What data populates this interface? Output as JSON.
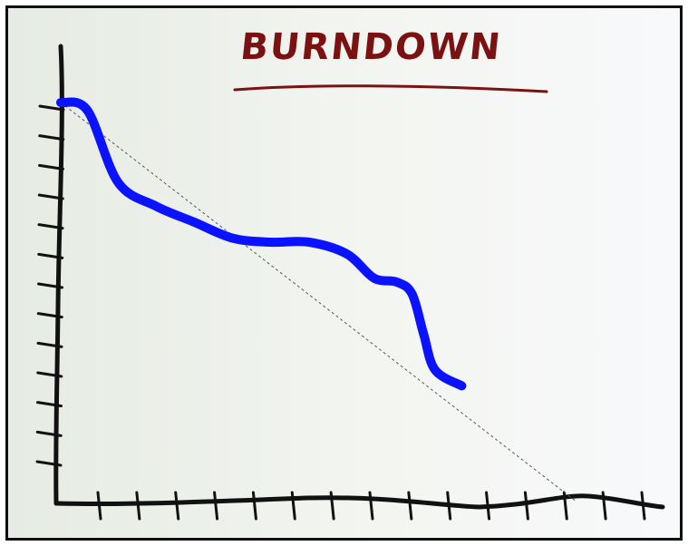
{
  "chart_data": {
    "type": "line",
    "title": "BURNDOWN",
    "xlabel": "",
    "ylabel": "",
    "xlim": [
      0,
      15
    ],
    "ylim": [
      0,
      100
    ],
    "x_tick_count": 15,
    "y_tick_count": 13,
    "series": [
      {
        "values": [
          [
            0,
            100
          ],
          [
            0.7,
            98
          ],
          [
            1.5,
            80
          ],
          [
            2.5,
            74
          ],
          [
            3.5,
            70
          ],
          [
            4.5,
            66
          ],
          [
            5.5,
            65
          ],
          [
            6.5,
            65
          ],
          [
            7.5,
            62
          ],
          [
            8.2,
            56
          ],
          [
            8.8,
            55
          ],
          [
            9.2,
            52
          ],
          [
            9.5,
            42
          ],
          [
            9.8,
            33
          ],
          [
            10.5,
            29
          ]
        ]
      }
    ],
    "ideal": [
      [
        0,
        100
      ],
      [
        13.5,
        0
      ]
    ],
    "colors": {
      "actual": "#0a12ff",
      "ideal": "#555555",
      "axis": "#111111",
      "title": "#7a1212"
    },
    "grid": false,
    "legend": "none"
  }
}
